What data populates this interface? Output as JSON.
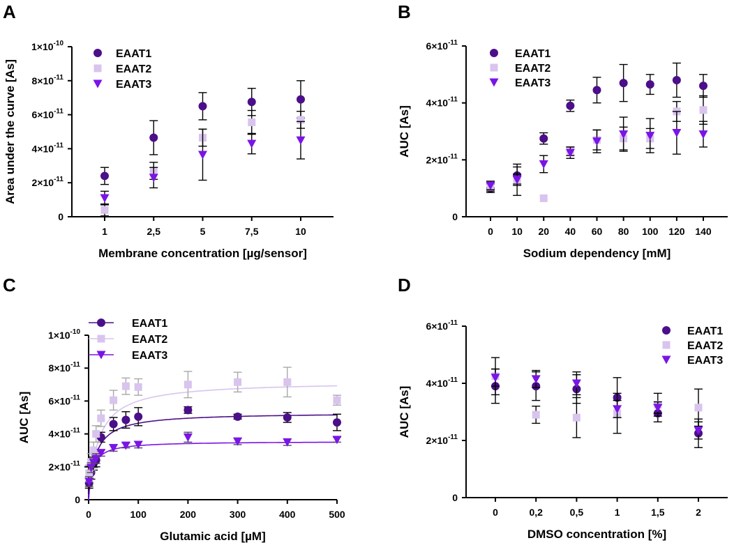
{
  "colors": {
    "EAAT1": "#4b0f8a",
    "EAAT2": "#d8c4ee",
    "EAAT3": "#7b14e6",
    "error": "#000000",
    "errorC2": "#a8a8a8",
    "errorC3": "#505050"
  },
  "chart_data": [
    {
      "panel": "A",
      "type": "scatter",
      "xlabel": "Membrane concentration [µg/sensor]",
      "ylabel": "Area under the curve [As]",
      "categories": [
        "1",
        "2,5",
        "5",
        "7,5",
        "10"
      ],
      "ylim": [
        0,
        1e-10
      ],
      "yticks": [
        {
          "value": 0,
          "base": "0",
          "exp": ""
        },
        {
          "value": 2e-11,
          "base": "2×10",
          "exp": "-11"
        },
        {
          "value": 4e-11,
          "base": "4×10",
          "exp": "-11"
        },
        {
          "value": 6e-11,
          "base": "6×10",
          "exp": "-11"
        },
        {
          "value": 8e-11,
          "base": "8×10",
          "exp": "-11"
        },
        {
          "value": 1e-10,
          "base": "1×10",
          "exp": "-10"
        }
      ],
      "legend": {
        "position": "top-left"
      },
      "series": [
        {
          "name": "EAAT1",
          "marker": "circle",
          "values": [
            2.4e-11,
            4.65e-11,
            6.5e-11,
            6.75e-11,
            6.9e-11
          ],
          "errors": [
            5e-12,
            1e-11,
            8e-12,
            8e-12,
            1.1e-11
          ]
        },
        {
          "name": "EAAT2",
          "marker": "square",
          "values": [
            4e-12,
            2.7e-11,
            4.65e-11,
            5.55e-11,
            5.7e-11
          ],
          "errors": [
            3.5e-12,
            5e-12,
            5e-12,
            7e-12,
            5e-12
          ]
        },
        {
          "name": "EAAT3",
          "marker": "triangle",
          "values": [
            1.1e-11,
            2.3e-11,
            3.65e-11,
            4.3e-11,
            4.5e-11
          ],
          "errors": [
            4e-12,
            6e-12,
            1.5e-11,
            6e-12,
            1.1e-11
          ]
        }
      ]
    },
    {
      "panel": "B",
      "type": "scatter",
      "xlabel": "Sodium dependency [mM]",
      "ylabel": "AUC [As]",
      "categories": [
        "0",
        "10",
        "20",
        "40",
        "60",
        "80",
        "100",
        "120",
        "140"
      ],
      "ylim": [
        0,
        6e-11
      ],
      "yticks": [
        {
          "value": 0,
          "base": "0",
          "exp": ""
        },
        {
          "value": 2e-11,
          "base": "2×10",
          "exp": "-11"
        },
        {
          "value": 4e-11,
          "base": "4×10",
          "exp": "-11"
        },
        {
          "value": 6e-11,
          "base": "6×10",
          "exp": "-11"
        }
      ],
      "legend": {
        "position": "top-left"
      },
      "series": [
        {
          "name": "EAAT1",
          "marker": "circle",
          "values": [
            1e-11,
            1.45e-11,
            2.75e-11,
            3.9e-11,
            4.45e-11,
            4.7e-11,
            4.65e-11,
            4.8e-11,
            4.6e-11
          ],
          "errors": [
            1.5e-12,
            3e-12,
            2e-12,
            2e-12,
            4.5e-12,
            6.5e-12,
            3.5e-12,
            6e-12,
            4e-12
          ]
        },
        {
          "name": "EAAT2",
          "marker": "square",
          "values": [
            1.05e-11,
            1.3e-11,
            6.5e-12,
            2.3e-11,
            2.7e-11,
            2.75e-11,
            2.75e-11,
            3.7e-11,
            3.75e-11
          ],
          "errors": [
            1.5e-12,
            2e-12,
            0.0,
            1.5e-12,
            3.5e-12,
            4e-12,
            3.5e-12,
            3.5e-12,
            5e-12
          ]
        },
        {
          "name": "EAAT3",
          "marker": "triangle",
          "values": [
            1.1e-11,
            1.3e-11,
            1.85e-11,
            2.25e-11,
            2.65e-11,
            2.9e-11,
            2.85e-11,
            2.95e-11,
            2.9e-11
          ],
          "errors": [
            1.5e-12,
            5.5e-12,
            3e-12,
            2e-12,
            4e-12,
            6e-12,
            6e-12,
            7.5e-12,
            4.5e-12
          ]
        }
      ]
    },
    {
      "panel": "C",
      "type": "scatter",
      "xlabel": "Glutamic acid [µM]",
      "ylabel": "AUC [As]",
      "xlim": [
        0,
        500
      ],
      "xticks": [
        0,
        100,
        200,
        300,
        400,
        500
      ],
      "ylim": [
        0,
        1e-10
      ],
      "yticks": [
        {
          "value": 0,
          "base": "0",
          "exp": ""
        },
        {
          "value": 2e-11,
          "base": "2×10",
          "exp": "-11"
        },
        {
          "value": 4e-11,
          "base": "4×10",
          "exp": "-11"
        },
        {
          "value": 6e-11,
          "base": "6×10",
          "exp": "-11"
        },
        {
          "value": 8e-11,
          "base": "8×10",
          "exp": "-11"
        },
        {
          "value": 1e-10,
          "base": "1×10",
          "exp": "-10"
        }
      ],
      "legend": {
        "position": "top-left"
      },
      "fit": "hyperbolic saturation curve per series",
      "series": [
        {
          "name": "EAAT1",
          "marker": "circle",
          "bmax": 5.3e-11,
          "km": 14,
          "x": [
            1,
            5,
            10,
            15,
            25,
            50,
            75,
            100,
            200,
            300,
            400,
            500
          ],
          "values": [
            1e-11,
            1.65e-11,
            2.2e-11,
            2.4e-11,
            3.8e-11,
            4.6e-11,
            4.85e-11,
            5.05e-11,
            5.45e-11,
            5.05e-11,
            5e-11,
            4.7e-11
          ],
          "errors": [
            3e-12,
            4e-12,
            4e-12,
            4e-12,
            3e-12,
            4e-12,
            5e-12,
            5.5e-12,
            2e-12,
            1.5e-12,
            3e-12,
            5e-12
          ]
        },
        {
          "name": "EAAT2",
          "marker": "square",
          "bmax": 7.2e-11,
          "km": 20,
          "x": [
            1,
            5,
            10,
            15,
            25,
            50,
            75,
            100,
            200,
            300,
            400,
            500
          ],
          "values": [
            1.6e-11,
            2.3e-11,
            3e-11,
            4e-11,
            4.95e-11,
            6.05e-11,
            6.9e-11,
            6.85e-11,
            7e-11,
            7.15e-11,
            7.15e-11,
            6.05e-11
          ],
          "errors": [
            5e-12,
            5e-12,
            5e-12,
            5e-12,
            5e-12,
            6e-12,
            5e-12,
            5e-12,
            8e-12,
            6e-12,
            9e-12,
            3e-12
          ]
        },
        {
          "name": "EAAT3",
          "marker": "triangle",
          "bmax": 3.55e-11,
          "km": 8,
          "x": [
            1,
            5,
            10,
            15,
            25,
            50,
            75,
            100,
            200,
            300,
            400,
            500
          ],
          "values": [
            1.1e-11,
            1.95e-11,
            2.25e-11,
            2.5e-11,
            2.85e-11,
            3.15e-11,
            3.3e-11,
            3.35e-11,
            3.8e-11,
            3.55e-11,
            3.5e-11,
            3.65e-11
          ],
          "errors": [
            3e-12,
            3e-12,
            3e-12,
            3e-12,
            2e-12,
            2e-12,
            1.5e-12,
            2e-12,
            3e-12,
            2e-12,
            2e-12,
            1.5e-12
          ]
        }
      ]
    },
    {
      "panel": "D",
      "type": "scatter",
      "xlabel": "DMSO concentration [%]",
      "ylabel": "AUC [As]",
      "categories": [
        "0",
        "0,2",
        "0,5",
        "1",
        "1,5",
        "2"
      ],
      "ylim": [
        0,
        6e-11
      ],
      "yticks": [
        {
          "value": 0,
          "base": "0",
          "exp": ""
        },
        {
          "value": 2e-11,
          "base": "2×10",
          "exp": "-11"
        },
        {
          "value": 4e-11,
          "base": "4×10",
          "exp": "-11"
        },
        {
          "value": 6e-11,
          "base": "6×10",
          "exp": "-11"
        }
      ],
      "legend": {
        "position": "top-right"
      },
      "series": [
        {
          "name": "EAAT1",
          "marker": "circle",
          "values": [
            3.9e-11,
            3.9e-11,
            3.8e-11,
            3.5e-11,
            2.95e-11,
            2.25e-11
          ],
          "errors": [
            6e-12,
            5e-12,
            5e-12,
            7e-12,
            3e-12,
            5e-12
          ]
        },
        {
          "name": "EAAT2",
          "marker": "square",
          "values": [
            4.25e-11,
            2.9e-11,
            2.8e-11,
            2.95e-11,
            3.25e-11,
            3.15e-11
          ],
          "errors": [
            6.5e-12,
            3e-12,
            7e-12,
            7e-12,
            4e-12,
            6.5e-12
          ]
        },
        {
          "name": "EAAT3",
          "marker": "triangle",
          "values": [
            4.2e-11,
            4.15e-11,
            4e-11,
            3.1e-11,
            3.15e-11,
            2.35e-11
          ],
          "errors": [
            3e-12,
            3e-12,
            4e-12,
            3e-12,
            2e-12,
            3e-12
          ]
        }
      ]
    }
  ]
}
